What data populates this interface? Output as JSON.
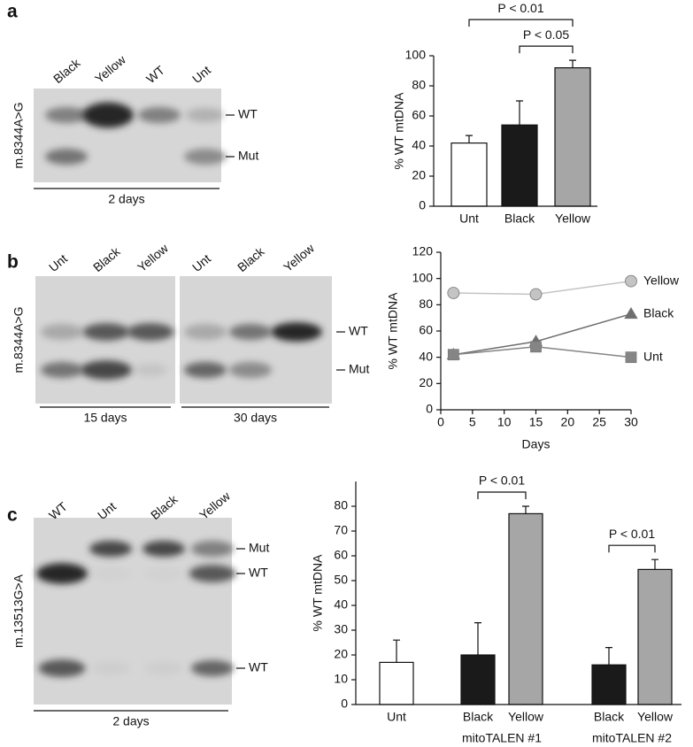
{
  "panel_labels": [
    "a",
    "b",
    "c"
  ],
  "gels": [
    {
      "marker": "m.8344A>G",
      "lanes": [
        "Black",
        "Yellow",
        "WT",
        "Unt"
      ],
      "bands": [
        "WT",
        "Mut"
      ],
      "durations": [
        "2 days"
      ]
    },
    {
      "marker": "m.8344A>G",
      "lanes": [
        "Unt",
        "Black",
        "Yellow",
        "Unt",
        "Black",
        "Yellow"
      ],
      "bands": [
        "WT",
        "Mut"
      ],
      "durations": [
        "15 days",
        "30 days"
      ]
    },
    {
      "marker": "m.13513G>A",
      "lanes": [
        "WT",
        "Unt",
        "Black",
        "Yellow"
      ],
      "bands": [
        "Mut",
        "WT",
        "WT"
      ],
      "durations": [
        "2 days"
      ]
    }
  ],
  "chart_data": [
    {
      "type": "bar",
      "categories": [
        "Unt",
        "Black",
        "Yellow"
      ],
      "values": [
        42,
        54,
        92
      ],
      "errors": [
        5,
        16,
        5
      ],
      "colors": [
        "#ffffff",
        "#1a1a1a",
        "#a6a6a6"
      ],
      "y_label": "% WT mtDNA",
      "ylim": [
        0,
        100
      ],
      "yticks": [
        0,
        20,
        40,
        60,
        80,
        100
      ],
      "annotations": [
        {
          "text": "P < 0.01",
          "between": [
            0,
            2
          ]
        },
        {
          "text": "P < 0.05",
          "between": [
            1,
            2
          ]
        }
      ]
    },
    {
      "type": "line",
      "x_label": "Days",
      "y_label": "% WT mtDNA",
      "xlim": [
        0,
        30
      ],
      "xticks": [
        0,
        5,
        10,
        15,
        20,
        25,
        30
      ],
      "ylim": [
        0,
        120
      ],
      "yticks": [
        0,
        20,
        40,
        60,
        80,
        100,
        120
      ],
      "series": [
        {
          "name": "Yellow",
          "color": "#c4c4c4",
          "marker": "circle",
          "x": [
            2,
            15,
            30
          ],
          "values": [
            89,
            88,
            98
          ]
        },
        {
          "name": "Black",
          "color": "#6e6e6e",
          "marker": "triangle",
          "x": [
            2,
            15,
            30
          ],
          "values": [
            42,
            52,
            73
          ]
        },
        {
          "name": "Unt",
          "color": "#858585",
          "marker": "square",
          "x": [
            2,
            15,
            30
          ],
          "values": [
            42,
            48,
            40
          ]
        }
      ]
    },
    {
      "type": "bar",
      "categories": [
        "Unt",
        "Black",
        "Yellow",
        "Black",
        "Yellow"
      ],
      "values": [
        17,
        20,
        77,
        16,
        54.5
      ],
      "errors": [
        9,
        13,
        3,
        7,
        4
      ],
      "colors": [
        "#ffffff",
        "#1a1a1a",
        "#a6a6a6",
        "#1a1a1a",
        "#a6a6a6"
      ],
      "y_label": "% WT mtDNA",
      "ylim": [
        0,
        90
      ],
      "yticks": [
        0,
        10,
        20,
        30,
        40,
        50,
        60,
        70,
        80
      ],
      "groups": [
        {
          "name": "mitoTALEN #1",
          "members": [
            1,
            2
          ]
        },
        {
          "name": "mitoTALEN #2",
          "members": [
            3,
            4
          ]
        }
      ],
      "annotations": [
        {
          "text": "P < 0.01",
          "between": [
            1,
            2
          ]
        },
        {
          "text": "P < 0.01",
          "between": [
            3,
            4
          ]
        }
      ]
    }
  ]
}
